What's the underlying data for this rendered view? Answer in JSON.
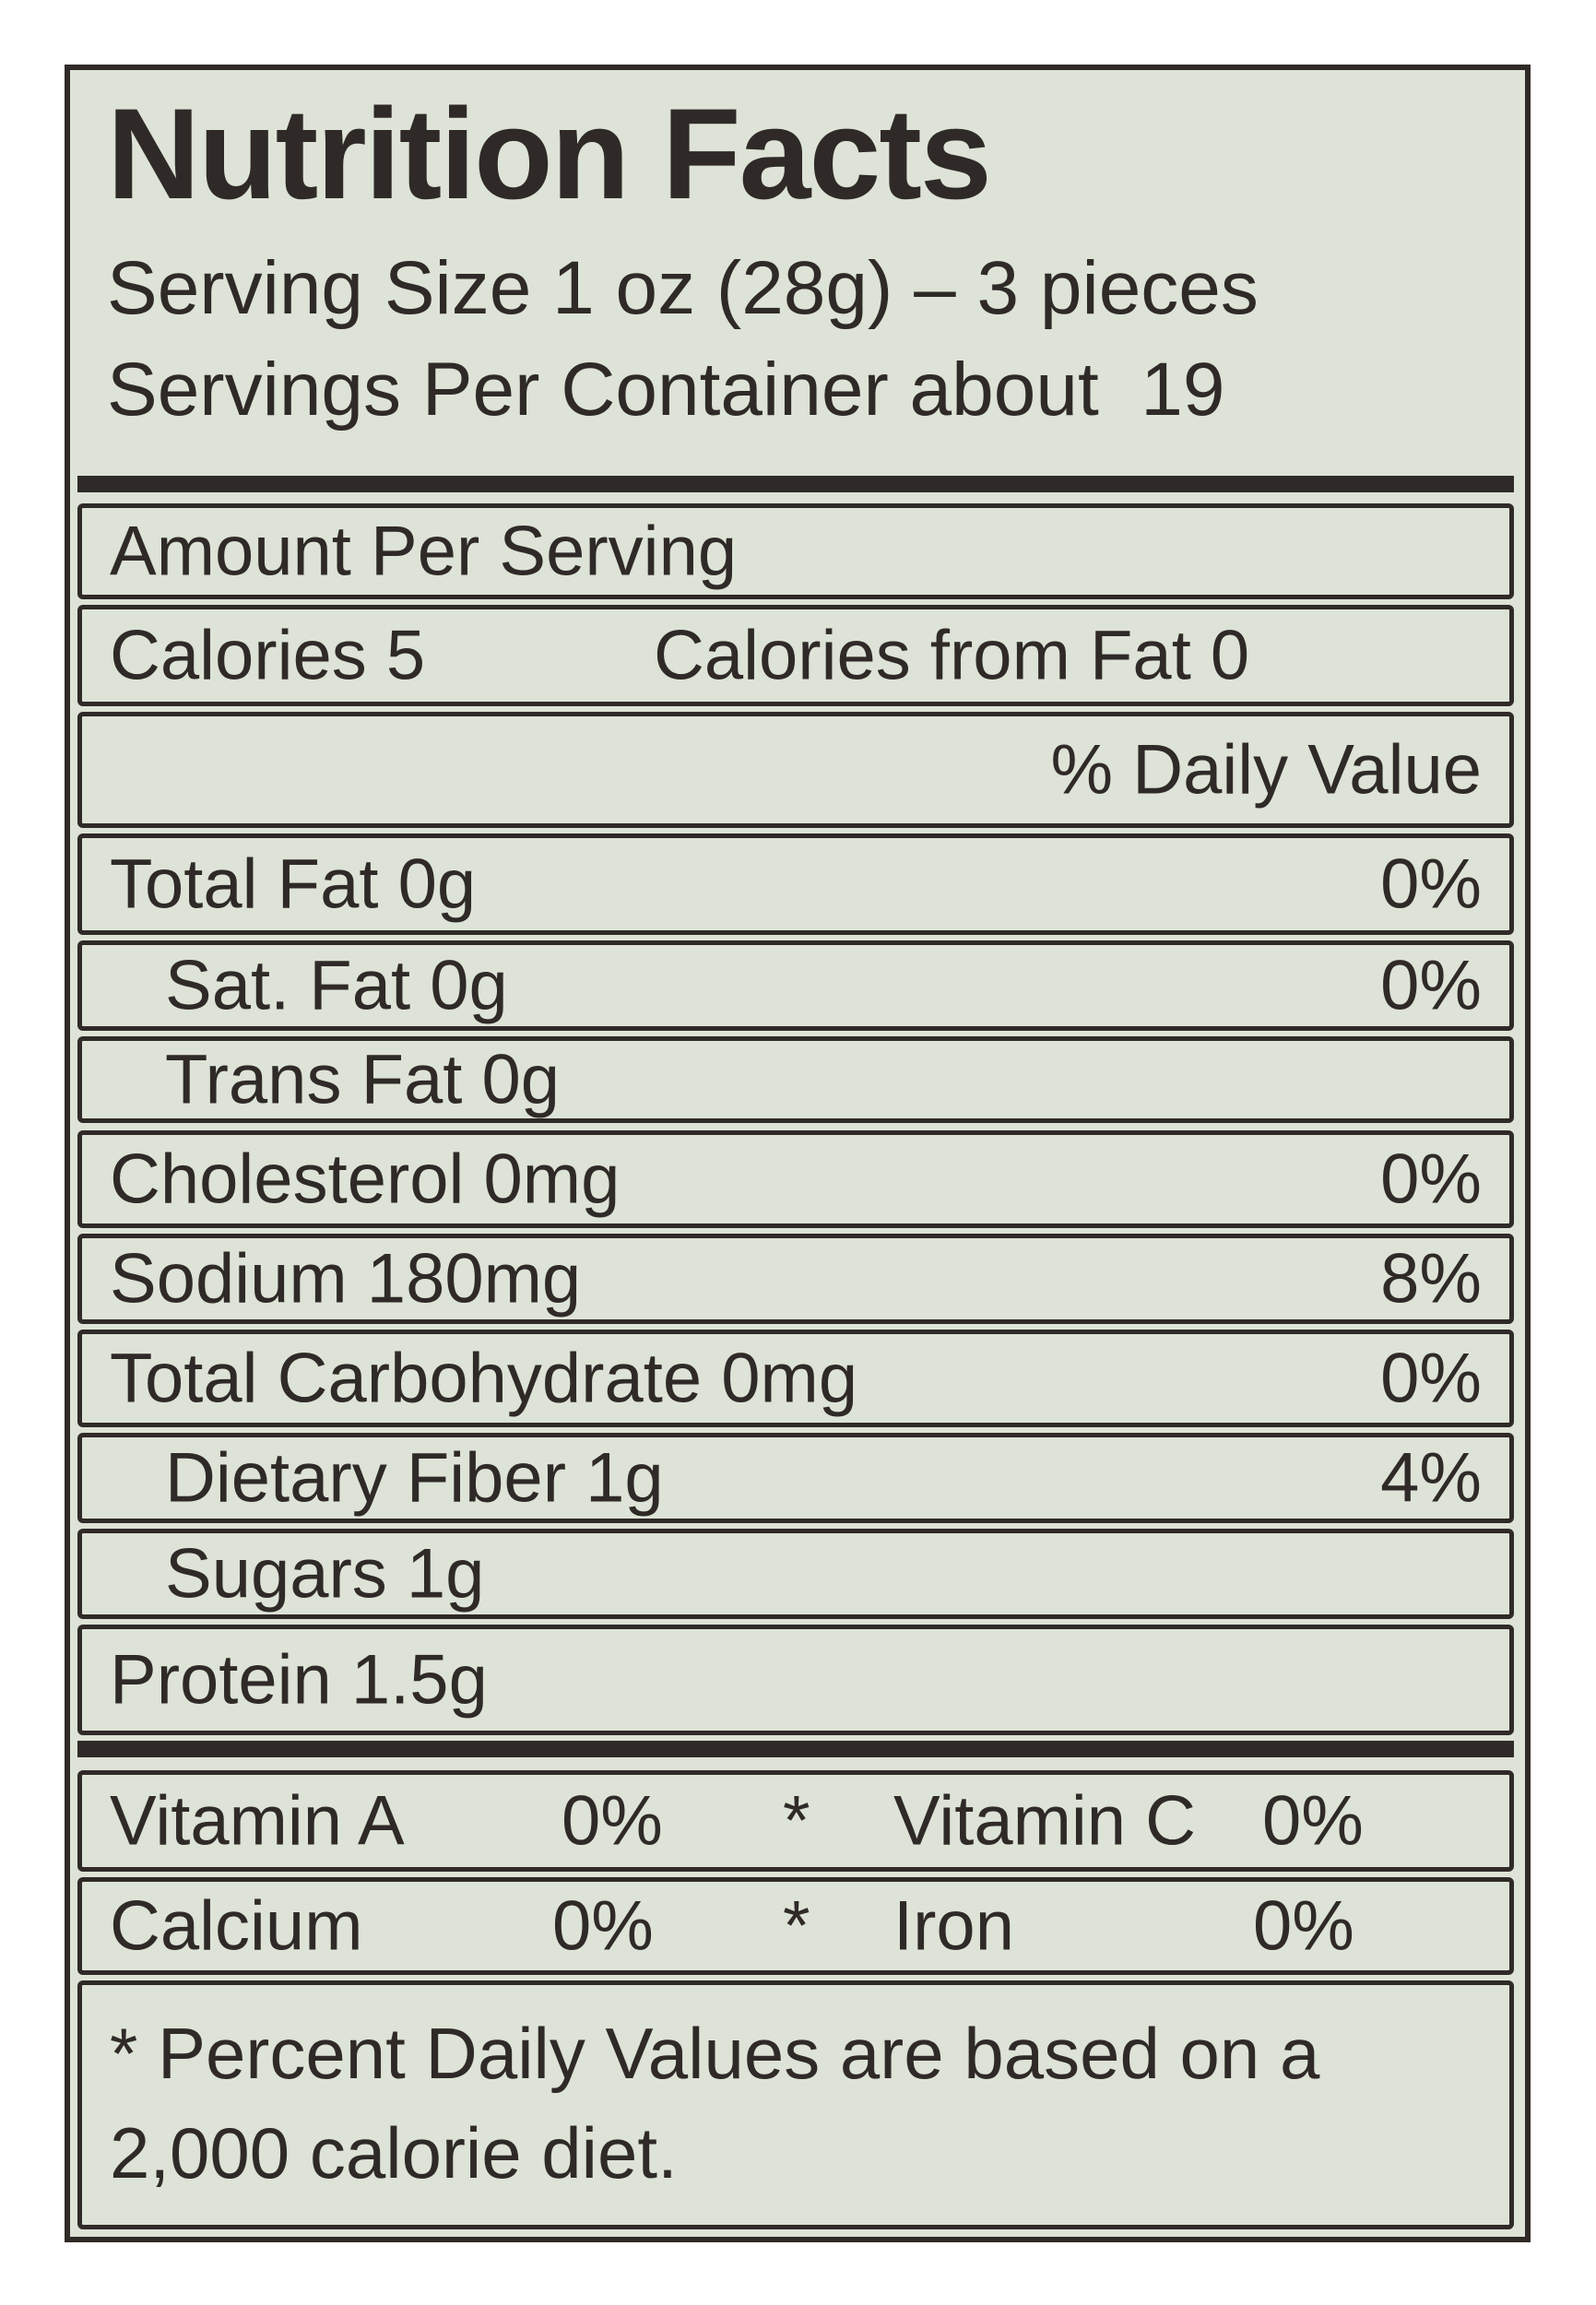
{
  "header": {
    "title": "Nutrition Facts",
    "serving_size": "Serving Size 1 oz (28g) – 3 pieces",
    "servings_per_container": "Servings Per Container about  19"
  },
  "amount_per_serving": "Amount Per Serving",
  "calories": "Calories 5",
  "calories_from_fat": "Calories from Fat 0",
  "daily_value_header": "% Daily Value",
  "nutrients": [
    {
      "label": "Total Fat 0g",
      "daily_value": "0%"
    },
    {
      "label": "Sat. Fat 0g",
      "daily_value": "0%"
    },
    {
      "label": "Trans Fat 0g"
    },
    {
      "label": "Cholesterol 0mg",
      "daily_value": "0%"
    },
    {
      "label": "Sodium 180mg",
      "daily_value": "8%"
    },
    {
      "label": "Total Carbohydrate 0mg",
      "daily_value": "0%"
    },
    {
      "label": "Dietary Fiber 1g",
      "daily_value": "4%"
    },
    {
      "label": "Sugars 1g"
    },
    {
      "label": "Protein 1.5g"
    }
  ],
  "vitamins": [
    [
      {
        "name": "Vitamin A",
        "value": "0%"
      },
      {
        "name": "Vitamin C",
        "value": "0%"
      }
    ],
    [
      {
        "name": "Calcium",
        "value": "0%"
      },
      {
        "name": "Iron",
        "value": "0%"
      }
    ]
  ],
  "vitamin_separator": "*",
  "footnote": "* Percent Daily Values are based on a 2,000 calorie diet."
}
